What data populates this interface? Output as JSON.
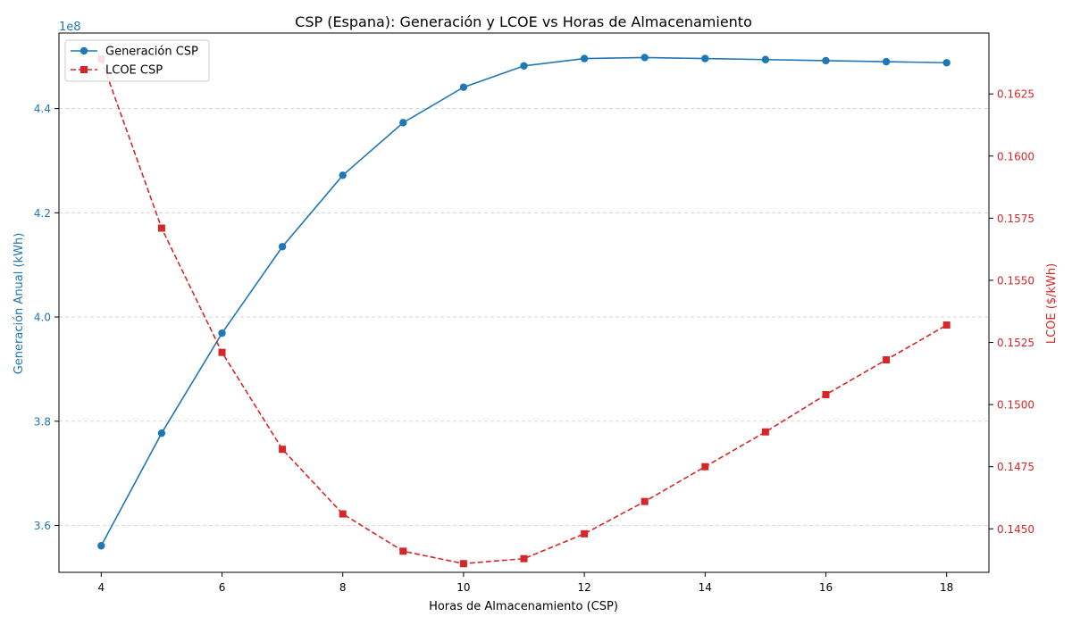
{
  "chart_data": {
    "type": "line",
    "title": "CSP (Espana): Generación y LCOE vs Horas de Almacenamiento",
    "xlabel": "Horas de Almacenamiento (CSP)",
    "x": [
      4,
      5,
      6,
      7,
      8,
      9,
      10,
      11,
      12,
      13,
      14,
      15,
      16,
      17,
      18
    ],
    "xlim": [
      3.3,
      18.7
    ],
    "xticks": [
      4,
      6,
      8,
      10,
      12,
      14,
      16,
      18
    ],
    "y_left": {
      "label": "Generación Anual (kWh)",
      "color": "#1f77b4",
      "multiplier": "1e8",
      "lim": [
        3.51,
        4.545
      ],
      "ticks": [
        3.6,
        3.8,
        4.0,
        4.2,
        4.4
      ],
      "tick_labels": [
        "3.6",
        "3.8",
        "4.0",
        "4.2",
        "4.4"
      ]
    },
    "y_right": {
      "label": "LCOE ($/kWh)",
      "color": "#d62728",
      "lim": [
        0.14325,
        0.16495
      ],
      "ticks": [
        0.145,
        0.1475,
        0.15,
        0.1525,
        0.155,
        0.1575,
        0.16,
        0.1625
      ],
      "tick_labels": [
        "0.1450",
        "0.1475",
        "0.1500",
        "0.1525",
        "0.1550",
        "0.1575",
        "0.1600",
        "0.1625"
      ]
    },
    "series": [
      {
        "name": "Generación CSP",
        "axis": "left",
        "color": "#1f77b4",
        "marker": "circle",
        "linestyle": "solid",
        "values": [
          3.561,
          3.777,
          3.969,
          4.135,
          4.272,
          4.373,
          4.441,
          4.482,
          4.496,
          4.498,
          4.496,
          4.494,
          4.492,
          4.49,
          4.488
        ]
      },
      {
        "name": "LCOE CSP",
        "axis": "right",
        "color": "#d62728",
        "marker": "square",
        "linestyle": "dashed",
        "values": [
          0.1639,
          0.1571,
          0.1521,
          0.1482,
          0.1456,
          0.1441,
          0.1436,
          0.1438,
          0.1448,
          0.1461,
          0.1475,
          0.1489,
          0.1504,
          0.1518,
          0.1532
        ]
      }
    ],
    "grid": "y-dashed",
    "legend_position": "upper-left"
  }
}
